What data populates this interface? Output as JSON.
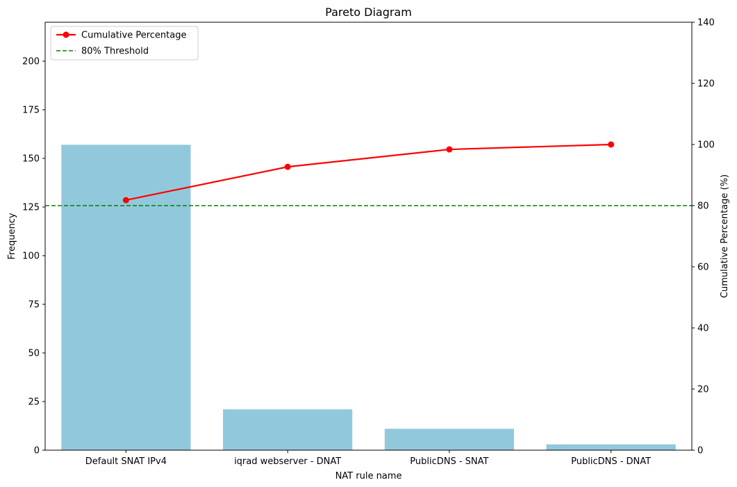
{
  "chart_data": {
    "type": "bar",
    "title": "Pareto Diagram",
    "xlabel": "NAT rule name",
    "ylabel": "Frequency",
    "y2label": "Cumulative Percentage (%)",
    "categories": [
      "Default SNAT IPv4",
      "iqrad webserver - DNAT",
      "PublicDNS - SNAT",
      "PublicDNS - DNAT"
    ],
    "values": [
      157,
      21,
      11,
      3
    ],
    "ylim": [
      0,
      220
    ],
    "y2lim": [
      0,
      140
    ],
    "yticks": [
      "0",
      "25",
      "50",
      "75",
      "100",
      "125",
      "150",
      "175",
      "200"
    ],
    "y2ticks": [
      "0",
      "20",
      "40",
      "60",
      "80",
      "100",
      "120",
      "140"
    ],
    "cumulative_percentage": [
      81.8,
      92.7,
      98.4,
      100.0
    ],
    "threshold": 80,
    "legend": {
      "placement": "top-left",
      "entries": [
        {
          "label": "Cumulative Percentage",
          "color": "#ff0000",
          "style": "line-marker"
        },
        {
          "label": "80% Threshold",
          "color": "#008000",
          "style": "dashed"
        }
      ]
    },
    "colors": {
      "bar": "#92c8dc",
      "line": "#ff0000",
      "threshold": "#008000"
    },
    "grid": false
  }
}
